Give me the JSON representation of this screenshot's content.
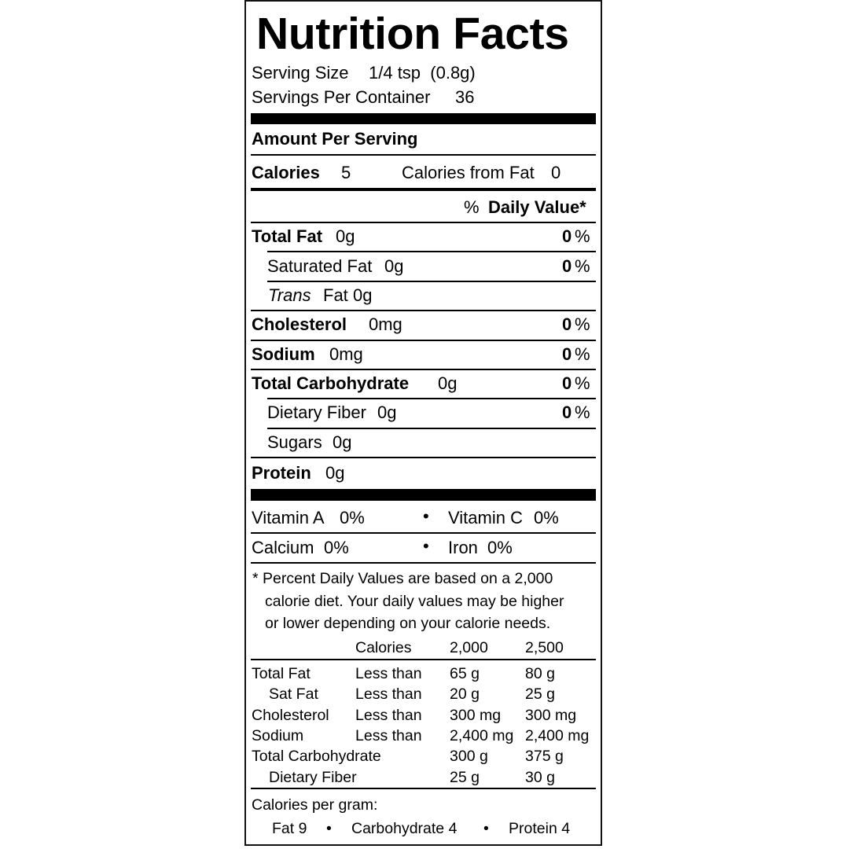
{
  "title": "Nutrition Facts",
  "serving": {
    "size_label": "Serving Size",
    "size_value": "1/4 tsp  (0.8g)",
    "per_container_label": "Servings Per Container",
    "per_container_value": "36"
  },
  "amount_per_serving": "Amount Per Serving",
  "calories": {
    "label": "Calories",
    "value": "5",
    "from_fat_label": "Calories from Fat",
    "from_fat_value": "0"
  },
  "daily_value_header": {
    "prefix": "%",
    "label": "Daily Value*"
  },
  "nutrients": [
    {
      "name": "Total Fat",
      "amount": "0g",
      "dv": "0",
      "pct": "%"
    },
    {
      "name": "Saturated Fat",
      "amount": "0g",
      "dv": "0",
      "pct": "%"
    },
    {
      "name": "Trans",
      "name_suffix": "Fat",
      "amount": "0g"
    },
    {
      "name": "Cholesterol",
      "amount": "0mg",
      "dv": "0",
      "pct": "%"
    },
    {
      "name": "Sodium",
      "amount": "0mg",
      "dv": "0",
      "pct": "%"
    },
    {
      "name": "Total Carbohydrate",
      "amount": "0g",
      "dv": "0",
      "pct": "%"
    },
    {
      "name": "Dietary Fiber",
      "amount": "0g",
      "dv": "0",
      "pct": "%"
    },
    {
      "name": "Sugars",
      "amount": "0g"
    },
    {
      "name": "Protein",
      "amount": "0g"
    }
  ],
  "vitamins": [
    {
      "label": "Vitamin A",
      "value": "0%"
    },
    {
      "label": "Vitamin C",
      "value": "0%"
    },
    {
      "label": "Calcium",
      "value": "0%"
    },
    {
      "label": "Iron",
      "value": "0%"
    }
  ],
  "bullet": "•",
  "footnote": [
    "* Percent Daily Values are based on a 2,000",
    "calorie diet. Your daily values may be higher",
    "or lower depending on your calorie needs."
  ],
  "dv_table": {
    "header": [
      "",
      "Calories",
      "2,000",
      "2,500"
    ],
    "rows": [
      [
        "Total Fat",
        "Less than",
        "65 g",
        "80 g"
      ],
      [
        "Sat Fat",
        "Less than",
        "20 g",
        "25 g"
      ],
      [
        "Cholesterol",
        "Less than",
        "300 mg",
        "300 mg"
      ],
      [
        "Sodium",
        "Less than",
        "2,400 mg",
        "2,400 mg"
      ],
      [
        "Total Carbohydrate",
        "",
        "300 g",
        "375 g"
      ],
      [
        "Dietary Fiber",
        "",
        "25 g",
        "30 g"
      ]
    ]
  },
  "calories_per_gram": {
    "label": "Calories per gram:",
    "items": [
      "Fat 9",
      "Carbohydrate 4",
      "Protein 4"
    ]
  }
}
